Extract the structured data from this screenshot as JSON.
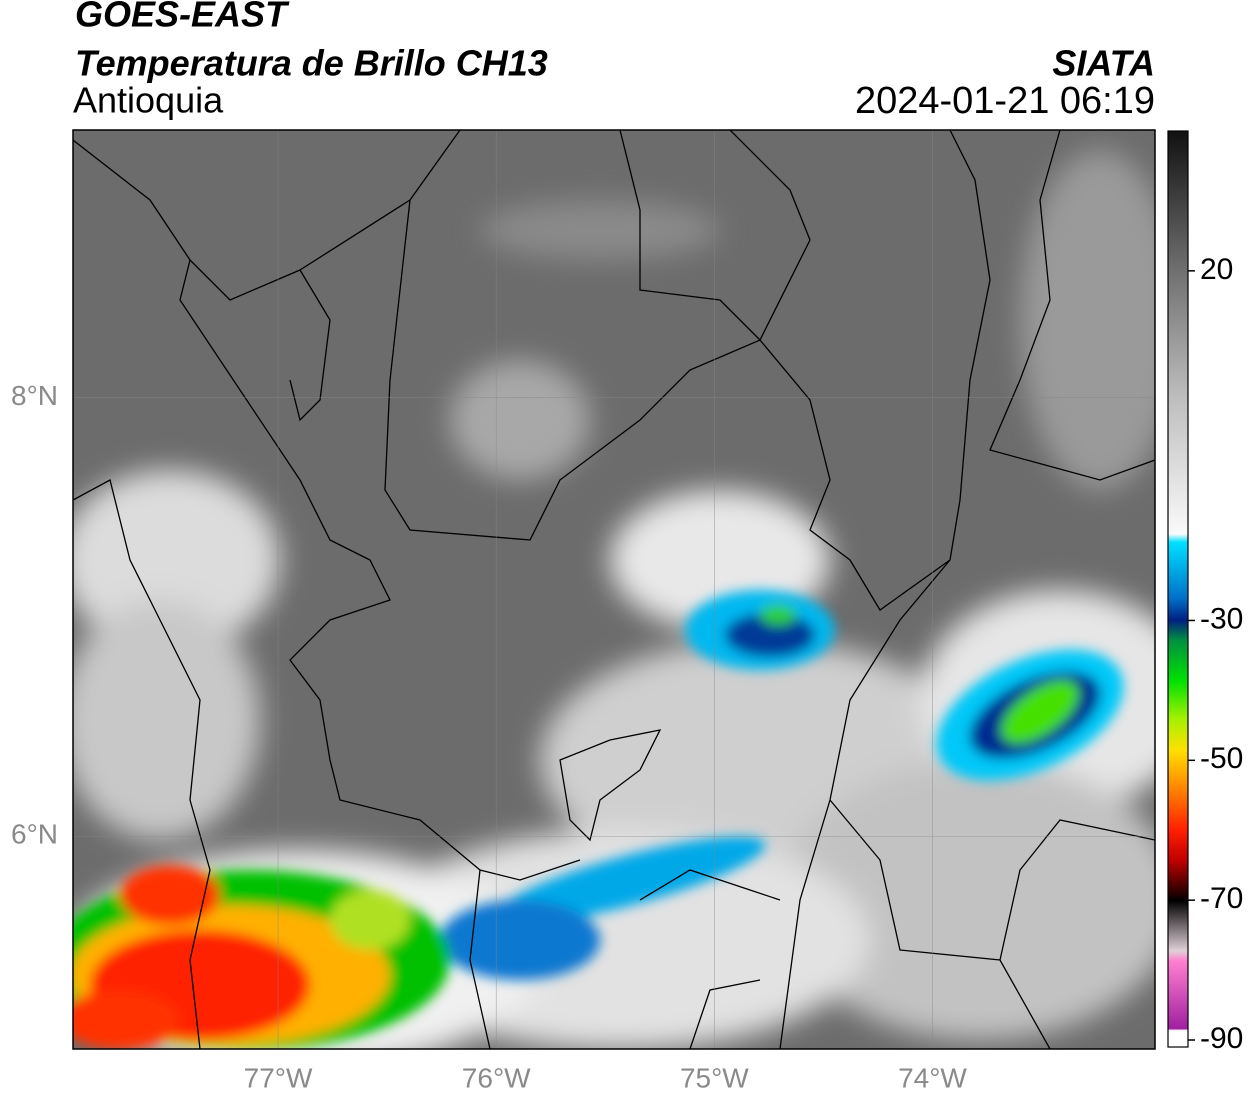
{
  "header": {
    "title": "GOES-EAST",
    "subtitle": "Temperatura de Brillo CH13",
    "region": "Antioquia",
    "source": "SIATA",
    "datetime": "2024-01-21 06:19"
  },
  "map": {
    "xlim": [
      -77.94,
      -72.98
    ],
    "ylim": [
      5.03,
      9.22
    ],
    "xticks": [
      {
        "value": -77,
        "label": "77°W"
      },
      {
        "value": -76,
        "label": "76°W"
      },
      {
        "value": -75,
        "label": "75°W"
      },
      {
        "value": -74,
        "label": "74°W"
      }
    ],
    "yticks": [
      {
        "value": 8,
        "label": "8°N"
      },
      {
        "value": 6,
        "label": "6°N"
      }
    ],
    "grid": true
  },
  "colorbar": {
    "ylim": [
      -91,
      40
    ],
    "yticks": [
      20,
      -30,
      -50,
      -70,
      -90
    ]
  }
}
